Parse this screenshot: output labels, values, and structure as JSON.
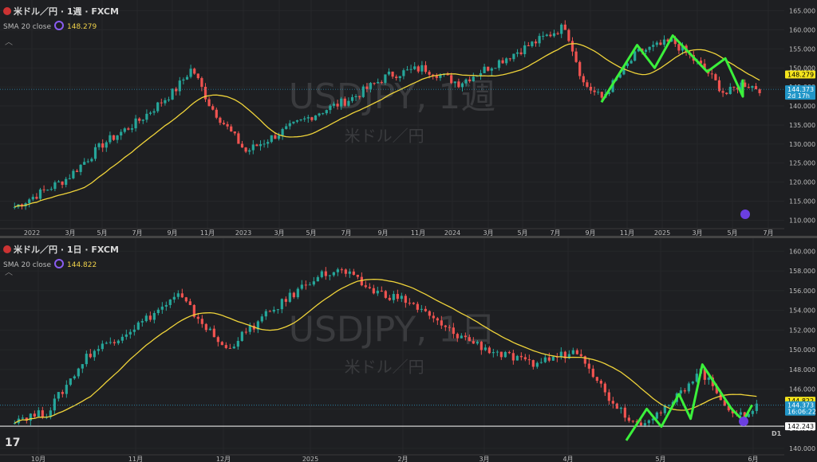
{
  "charts": [
    {
      "title": "米ドル／円 · 1週 · FXCM",
      "indicator": "SMA 20 close",
      "indicator_value": "148.279",
      "watermark_symbol": "USDJPY, 1週",
      "watermark_name": "米ドル／円",
      "time_labels": [
        "2022",
        "3月",
        "5月",
        "7月",
        "9月",
        "11月",
        "2023",
        "3月",
        "5月",
        "7月",
        "9月",
        "11月",
        "2024",
        "3月",
        "5月",
        "7月",
        "9月",
        "11月",
        "2025",
        "3月",
        "5月",
        "7月"
      ],
      "price_labels": [
        "165.000",
        "160.000",
        "155.000",
        "150.000",
        "145.000",
        "140.000",
        "135.000",
        "130.000",
        "125.000",
        "120.000",
        "115.000",
        "110.000"
      ],
      "tags": [
        {
          "label": "148.279",
          "color": "#f5e51c",
          "text_color": "#000000"
        },
        {
          "label": "144.373",
          "sub": "2d 17h",
          "color": "#2196c8",
          "text_color": "#ffffff"
        }
      ]
    },
    {
      "title": "米ドル／円 · 1日 · FXCM",
      "indicator": "SMA 20 close",
      "indicator_value": "144.822",
      "watermark_symbol": "USDJPY, 1日",
      "watermark_name": "米ドル／円",
      "time_labels": [
        "10月",
        "11月",
        "12月",
        "2025",
        "2月",
        "3月",
        "4月",
        "5月",
        "6月"
      ],
      "price_labels": [
        "160.000",
        "158.000",
        "156.000",
        "154.000",
        "152.000",
        "150.000",
        "148.000",
        "146.000",
        "144.000",
        "142.000",
        "140.000"
      ],
      "tags": [
        {
          "label": "144.822",
          "color": "#f5e51c",
          "text_color": "#000000"
        },
        {
          "label": "144.373",
          "sub": "16:06:22",
          "color": "#2196c8",
          "text_color": "#ffffff"
        },
        {
          "label": "142.243",
          "color": "#ffffff",
          "text_color": "#000000"
        }
      ],
      "line_label": "D1"
    }
  ],
  "chart_data": [
    {
      "type": "candlestick",
      "title": "米ドル／円 · 1週 · FXCM",
      "ylim": [
        108,
        167
      ],
      "sma_20_last": 148.279,
      "last_price": 144.373,
      "approx_close_path": [
        {
          "x": "2021-12",
          "y": 113.5
        },
        {
          "x": "2022-03",
          "y": 121
        },
        {
          "x": "2022-05",
          "y": 130
        },
        {
          "x": "2022-07",
          "y": 136
        },
        {
          "x": "2022-09",
          "y": 144
        },
        {
          "x": "2022-10",
          "y": 150
        },
        {
          "x": "2022-11",
          "y": 140
        },
        {
          "x": "2023-01",
          "y": 128
        },
        {
          "x": "2023-03",
          "y": 133
        },
        {
          "x": "2023-05",
          "y": 138
        },
        {
          "x": "2023-07",
          "y": 142
        },
        {
          "x": "2023-09",
          "y": 148
        },
        {
          "x": "2023-11",
          "y": 150
        },
        {
          "x": "2024-01",
          "y": 146
        },
        {
          "x": "2024-03",
          "y": 151
        },
        {
          "x": "2024-05",
          "y": 156
        },
        {
          "x": "2024-07",
          "y": 161
        },
        {
          "x": "2024-08",
          "y": 146
        },
        {
          "x": "2024-09",
          "y": 142
        },
        {
          "x": "2024-11",
          "y": 154
        },
        {
          "x": "2025-01",
          "y": 157
        },
        {
          "x": "2025-03",
          "y": 149
        },
        {
          "x": "2025-04",
          "y": 143
        },
        {
          "x": "2025-05",
          "y": 146
        },
        {
          "x": "2025-06",
          "y": 144.4
        }
      ],
      "annotation_path": [
        {
          "x": "2024-09",
          "y": 141
        },
        {
          "x": "2024-11",
          "y": 156
        },
        {
          "x": "2024-12",
          "y": 150
        },
        {
          "x": "2025-01",
          "y": 158.5
        },
        {
          "x": "2025-03",
          "y": 149
        },
        {
          "x": "2025-04",
          "y": 152.5
        },
        {
          "x": "2025-05",
          "y": 142.5
        },
        {
          "x": "2025-05",
          "y": 147
        }
      ]
    },
    {
      "type": "candlestick",
      "title": "米ドル／円 · 1日 · FXCM",
      "ylim": [
        139.5,
        161
      ],
      "sma_20_last": 144.822,
      "last_price": 144.373,
      "horizontal_line": 142.243,
      "approx_close_path": [
        {
          "x": "2024-09-20",
          "y": 143
        },
        {
          "x": "2024-10-01",
          "y": 143.6
        },
        {
          "x": "2024-10-15",
          "y": 149.5
        },
        {
          "x": "2024-11-01",
          "y": 152.5
        },
        {
          "x": "2024-11-15",
          "y": 155.5
        },
        {
          "x": "2024-12-01",
          "y": 150.0
        },
        {
          "x": "2024-12-15",
          "y": 153.5
        },
        {
          "x": "2025-01-01",
          "y": 157.5
        },
        {
          "x": "2025-01-10",
          "y": 158.0
        },
        {
          "x": "2025-01-20",
          "y": 156.0
        },
        {
          "x": "2025-02-01",
          "y": 155.0
        },
        {
          "x": "2025-02-15",
          "y": 152.0
        },
        {
          "x": "2025-03-01",
          "y": 150.0
        },
        {
          "x": "2025-03-15",
          "y": 148.5
        },
        {
          "x": "2025-04-01",
          "y": 150.0
        },
        {
          "x": "2025-04-10",
          "y": 145.5
        },
        {
          "x": "2025-04-20",
          "y": 142.5
        },
        {
          "x": "2025-05-01",
          "y": 144.0
        },
        {
          "x": "2025-05-12",
          "y": 148.0
        },
        {
          "x": "2025-05-25",
          "y": 143.0
        },
        {
          "x": "2025-06-01",
          "y": 144.4
        }
      ],
      "annotation_path": [
        {
          "x": "2025-04-17",
          "y": 140.8
        },
        {
          "x": "2025-04-24",
          "y": 144.0
        },
        {
          "x": "2025-04-29",
          "y": 142.2
        },
        {
          "x": "2025-05-05",
          "y": 145.5
        },
        {
          "x": "2025-05-09",
          "y": 143.0
        },
        {
          "x": "2025-05-13",
          "y": 148.5
        },
        {
          "x": "2025-05-23",
          "y": 144.0
        },
        {
          "x": "2025-05-27",
          "y": 142.8
        },
        {
          "x": "2025-05-30",
          "y": 144.4
        }
      ]
    }
  ]
}
